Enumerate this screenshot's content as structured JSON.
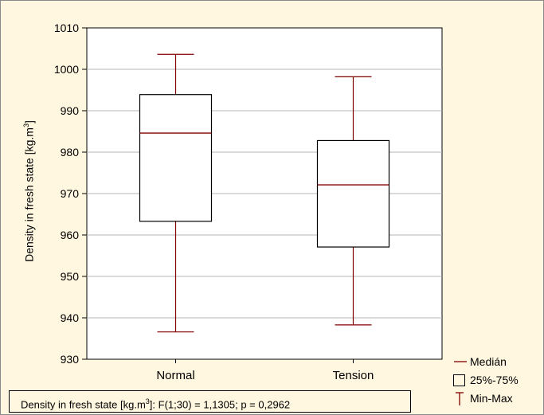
{
  "chart_data": {
    "type": "boxplot",
    "categories": [
      "Normal",
      "Tension"
    ],
    "boxes": [
      {
        "category": "Normal",
        "min": 936.6,
        "q1": 963.3,
        "median": 984.6,
        "q3": 993.9,
        "max": 1003.6
      },
      {
        "category": "Tension",
        "min": 938.3,
        "q1": 957.1,
        "median": 972.1,
        "q3": 982.8,
        "max": 998.2
      }
    ],
    "ylim": [
      930,
      1010
    ],
    "yticks": [
      "1010",
      "1000",
      "990",
      "980",
      "970",
      "960",
      "950",
      "940",
      "930"
    ],
    "ylabel_text": "Density in fresh state  [kg.m",
    "ylabel_sup": "3",
    "ylabel_end": "]",
    "grid": "horizontal",
    "legend_position": "bottom-right",
    "legend": [
      "Medián",
      "25%-75%",
      "Min-Max"
    ],
    "stat_label_pre": "Density  in fresh state [kg.m",
    "stat_label_sup": "3",
    "stat_label_post": "]:   F(1;30) = 1,1305; p = 0,2962",
    "colors": {
      "median": "#800000",
      "whisker": "#800000",
      "box": "#000000",
      "grid": "#b4b4b4",
      "background": "#fff7e0",
      "plot_bg": "#ffffff"
    }
  }
}
